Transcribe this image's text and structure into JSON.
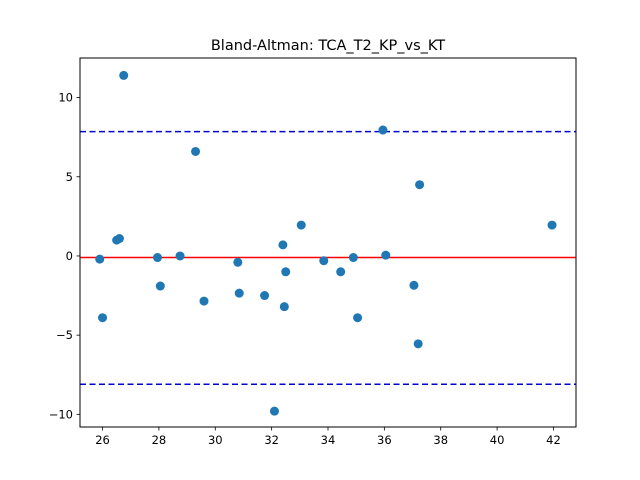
{
  "chart_data": {
    "type": "scatter",
    "title": "Bland-Altman: TCA_T2_KP_vs_KT",
    "xlabel": "",
    "ylabel": "",
    "xlim": [
      25.2,
      42.8
    ],
    "ylim": [
      -10.8,
      12.5
    ],
    "xticks": [
      26,
      28,
      30,
      32,
      34,
      36,
      38,
      40,
      42
    ],
    "yticks": [
      -10,
      -5,
      0,
      5,
      10
    ],
    "grid": false,
    "mean_line": -0.1,
    "upper_loa": 7.85,
    "lower_loa": -8.1,
    "colors": {
      "points": "#1f77b4",
      "mean": "#ff0000",
      "loa": "#0000cc"
    },
    "points": [
      {
        "x": 25.9,
        "y": -0.2
      },
      {
        "x": 26.0,
        "y": -3.9
      },
      {
        "x": 26.5,
        "y": 1.0
      },
      {
        "x": 26.6,
        "y": 1.1
      },
      {
        "x": 26.75,
        "y": 11.4
      },
      {
        "x": 27.95,
        "y": -0.1
      },
      {
        "x": 28.05,
        "y": -1.9
      },
      {
        "x": 28.75,
        "y": 0.0
      },
      {
        "x": 29.3,
        "y": 6.6
      },
      {
        "x": 29.6,
        "y": -2.85
      },
      {
        "x": 30.8,
        "y": -0.4
      },
      {
        "x": 30.85,
        "y": -2.35
      },
      {
        "x": 31.75,
        "y": -2.5
      },
      {
        "x": 32.1,
        "y": -9.8
      },
      {
        "x": 32.4,
        "y": 0.7
      },
      {
        "x": 32.45,
        "y": -3.2
      },
      {
        "x": 32.5,
        "y": -1.0
      },
      {
        "x": 33.05,
        "y": 1.95
      },
      {
        "x": 33.85,
        "y": -0.3
      },
      {
        "x": 34.45,
        "y": -1.0
      },
      {
        "x": 34.9,
        "y": -0.1
      },
      {
        "x": 35.05,
        "y": -3.9
      },
      {
        "x": 35.95,
        "y": 7.95
      },
      {
        "x": 36.05,
        "y": 0.05
      },
      {
        "x": 37.05,
        "y": -1.85
      },
      {
        "x": 37.2,
        "y": -5.55
      },
      {
        "x": 37.25,
        "y": 4.5
      },
      {
        "x": 41.95,
        "y": 1.95
      }
    ]
  }
}
